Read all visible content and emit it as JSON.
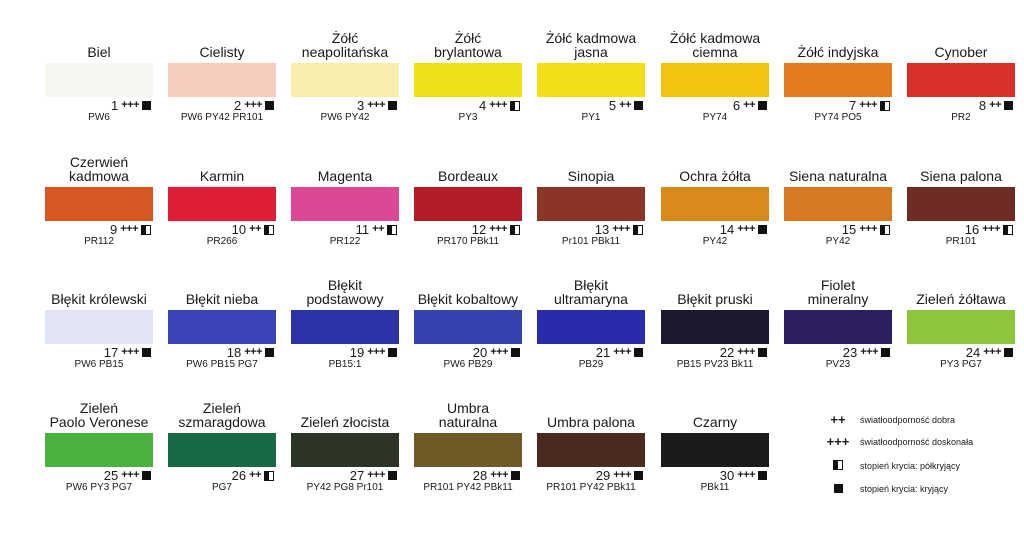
{
  "colors": [
    {
      "name": "Biel",
      "number": "1",
      "lightfastness": "+++",
      "opacity": "full",
      "pigments": "PW6",
      "hex": "#f6f5f0"
    },
    {
      "name": "Cielisty",
      "number": "2",
      "lightfastness": "+++",
      "opacity": "full",
      "pigments": "PW6 PY42 PR101",
      "hex": "#f6cdbf"
    },
    {
      "name": "Żółć\nneapolitańska",
      "number": "3",
      "lightfastness": "+++",
      "opacity": "full",
      "pigments": "PW6 PY42",
      "hex": "#f6eeaa"
    },
    {
      "name": "Żółć\nbrylantowa",
      "number": "4",
      "lightfastness": "+++",
      "opacity": "half",
      "pigments": "PY3",
      "hex": "#efe019"
    },
    {
      "name": "Żółć kadmowa\njasna",
      "number": "5",
      "lightfastness": "++",
      "opacity": "full",
      "pigments": "PY1",
      "hex": "#f1de17"
    },
    {
      "name": "Żółć kadmowa\nciemna",
      "number": "6",
      "lightfastness": "++",
      "opacity": "full",
      "pigments": "PY74",
      "hex": "#f4c410"
    },
    {
      "name": "Żółć indyjska",
      "number": "7",
      "lightfastness": "+++",
      "opacity": "half",
      "pigments": "PY74 PO5",
      "hex": "#e57b21"
    },
    {
      "name": "Cynober",
      "number": "8",
      "lightfastness": "++",
      "opacity": "full",
      "pigments": "PR2",
      "hex": "#d8312b"
    },
    {
      "name": "Czerwień\nkadmowa",
      "number": "9",
      "lightfastness": "+++",
      "opacity": "half",
      "pigments": "PR112",
      "hex": "#d85727"
    },
    {
      "name": "Karmin",
      "number": "10",
      "lightfastness": "++",
      "opacity": "half",
      "pigments": "PR266",
      "hex": "#de1f33"
    },
    {
      "name": "Magenta",
      "number": "11",
      "lightfastness": "++",
      "opacity": "half",
      "pigments": "PR122",
      "hex": "#dc4993"
    },
    {
      "name": "Bordeaux",
      "number": "12",
      "lightfastness": "+++",
      "opacity": "half",
      "pigments": "PR170 PBk11",
      "hex": "#b21c27"
    },
    {
      "name": "Sinopia",
      "number": "13",
      "lightfastness": "+++",
      "opacity": "half",
      "pigments": "Pr101 PBk11",
      "hex": "#8a3526"
    },
    {
      "name": "Ochra żółta",
      "number": "14",
      "lightfastness": "+++",
      "opacity": "full",
      "pigments": "PY42",
      "hex": "#d98a1c"
    },
    {
      "name": "Siena naturalna",
      "number": "15",
      "lightfastness": "+++",
      "opacity": "half",
      "pigments": "PY42",
      "hex": "#d57a20"
    },
    {
      "name": "Siena palona",
      "number": "16",
      "lightfastness": "+++",
      "opacity": "half",
      "pigments": "PR101",
      "hex": "#6e2d24"
    },
    {
      "name": "Błękit królewski",
      "number": "17",
      "lightfastness": "+++",
      "opacity": "full",
      "pigments": "PW6 PB15",
      "hex": "#e0e4f4"
    },
    {
      "name": "Błękit nieba",
      "number": "18",
      "lightfastness": "+++",
      "opacity": "full",
      "pigments": "PW6 PB15 PG7",
      "hex": "#3b43b6"
    },
    {
      "name": "Błękit\npodstawowy",
      "number": "19",
      "lightfastness": "+++",
      "opacity": "full",
      "pigments": "PB15:1",
      "hex": "#2b33a6"
    },
    {
      "name": "Błękit kobaltowy",
      "number": "20",
      "lightfastness": "+++",
      "opacity": "full",
      "pigments": "PW6 PB29",
      "hex": "#3642b2"
    },
    {
      "name": "Błękit\nultramaryna",
      "number": "21",
      "lightfastness": "+++",
      "opacity": "full",
      "pigments": "PB29",
      "hex": "#2a2ba8"
    },
    {
      "name": "Błękit pruski",
      "number": "22",
      "lightfastness": "+++",
      "opacity": "full",
      "pigments": "PB15 PV23 Bk11",
      "hex": "#1c1830"
    },
    {
      "name": "Fiolet\nmineralny",
      "number": "23",
      "lightfastness": "+++",
      "opacity": "full",
      "pigments": "PV23",
      "hex": "#2d1e5e"
    },
    {
      "name": "Zieleń żółtawa",
      "number": "24",
      "lightfastness": "+++",
      "opacity": "full",
      "pigments": "PY3 PG7",
      "hex": "#8fc53a"
    },
    {
      "name": "Zieleń\nPaolo Veronese",
      "number": "25",
      "lightfastness": "+++",
      "opacity": "full",
      "pigments": "PW6 PY3 PG7",
      "hex": "#48b23c"
    },
    {
      "name": "Zieleń\nszmaragdowa",
      "number": "26",
      "lightfastness": "++",
      "opacity": "half",
      "pigments": "PG7",
      "hex": "#166b46"
    },
    {
      "name": "Zieleń złocista",
      "number": "27",
      "lightfastness": "+++",
      "opacity": "full",
      "pigments": "PY42 PG8 Pr101",
      "hex": "#2c3425"
    },
    {
      "name": "Umbra\nnaturalna",
      "number": "28",
      "lightfastness": "+++",
      "opacity": "full",
      "pigments": "PR101 PY42 PBk11",
      "hex": "#6d5a27"
    },
    {
      "name": "Umbra palona",
      "number": "29",
      "lightfastness": "+++",
      "opacity": "full",
      "pigments": "PR101 PY42 PBk11",
      "hex": "#4b2a22"
    },
    {
      "name": "Czarny",
      "number": "30",
      "lightfastness": "+++",
      "opacity": "full",
      "pigments": "PBk11",
      "hex": "#1b1b1b"
    }
  ],
  "legend": {
    "good_symbol": "++",
    "good_text": "światłoodporność dobra",
    "excellent_symbol": "+++",
    "excellent_text": "światłoodporność doskonała",
    "half_text": "stopień krycia: półkryjący",
    "full_text": "stopień krycia: kryjący"
  }
}
